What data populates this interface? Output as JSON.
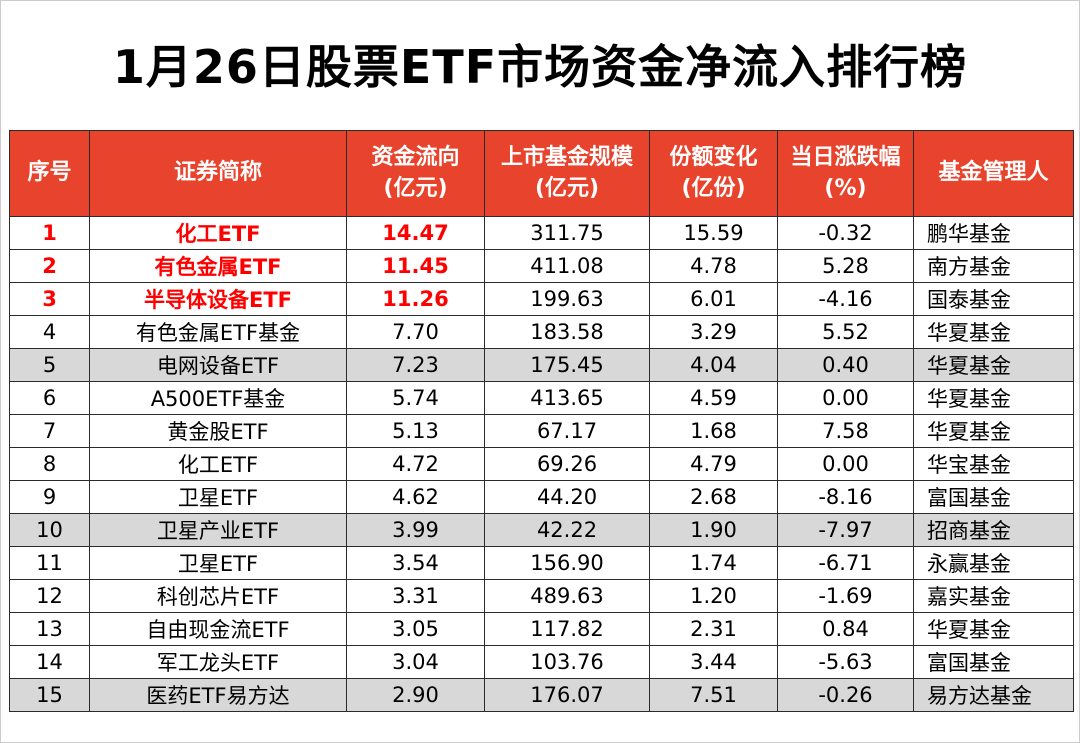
{
  "chart_data": {
    "type": "table",
    "title": "1月26日股票ETF市场资金净流入排行榜",
    "columns": [
      {
        "key": "rank",
        "label": "序号",
        "sublabel": ""
      },
      {
        "key": "name",
        "label": "证券简称",
        "sublabel": ""
      },
      {
        "key": "flow",
        "label": "资金流向",
        "sublabel": "(亿元)"
      },
      {
        "key": "scale",
        "label": "上市基金规模",
        "sublabel": "(亿元)"
      },
      {
        "key": "share",
        "label": "份额变化",
        "sublabel": "(亿份)"
      },
      {
        "key": "change",
        "label": "当日涨跌幅",
        "sublabel": "(%)"
      },
      {
        "key": "manager",
        "label": "基金管理人",
        "sublabel": ""
      }
    ],
    "rows": [
      {
        "rank": "1",
        "name": "化工ETF",
        "flow": "14.47",
        "scale": "311.75",
        "share": "15.59",
        "change": "-0.32",
        "manager": "鹏华基金"
      },
      {
        "rank": "2",
        "name": "有色金属ETF",
        "flow": "11.45",
        "scale": "411.08",
        "share": "4.78",
        "change": "5.28",
        "manager": "南方基金"
      },
      {
        "rank": "3",
        "name": "半导体设备ETF",
        "flow": "11.26",
        "scale": "199.63",
        "share": "6.01",
        "change": "-4.16",
        "manager": "国泰基金"
      },
      {
        "rank": "4",
        "name": "有色金属ETF基金",
        "flow": "7.70",
        "scale": "183.58",
        "share": "3.29",
        "change": "5.52",
        "manager": "华夏基金"
      },
      {
        "rank": "5",
        "name": "电网设备ETF",
        "flow": "7.23",
        "scale": "175.45",
        "share": "4.04",
        "change": "0.40",
        "manager": "华夏基金"
      },
      {
        "rank": "6",
        "name": "A500ETF基金",
        "flow": "5.74",
        "scale": "413.65",
        "share": "4.59",
        "change": "0.00",
        "manager": "华夏基金"
      },
      {
        "rank": "7",
        "name": "黄金股ETF",
        "flow": "5.13",
        "scale": "67.17",
        "share": "1.68",
        "change": "7.58",
        "manager": "华夏基金"
      },
      {
        "rank": "8",
        "name": "化工ETF",
        "flow": "4.72",
        "scale": "69.26",
        "share": "4.79",
        "change": "0.00",
        "manager": "华宝基金"
      },
      {
        "rank": "9",
        "name": "卫星ETF",
        "flow": "4.62",
        "scale": "44.20",
        "share": "2.68",
        "change": "-8.16",
        "manager": "富国基金"
      },
      {
        "rank": "10",
        "name": "卫星产业ETF",
        "flow": "3.99",
        "scale": "42.22",
        "share": "1.90",
        "change": "-7.97",
        "manager": "招商基金"
      },
      {
        "rank": "11",
        "name": "卫星ETF",
        "flow": "3.54",
        "scale": "156.90",
        "share": "1.74",
        "change": "-6.71",
        "manager": "永赢基金"
      },
      {
        "rank": "12",
        "name": "科创芯片ETF",
        "flow": "3.31",
        "scale": "489.63",
        "share": "1.20",
        "change": "-1.69",
        "manager": "嘉实基金"
      },
      {
        "rank": "13",
        "name": "自由现金流ETF",
        "flow": "3.05",
        "scale": "117.82",
        "share": "2.31",
        "change": "0.84",
        "manager": "华夏基金"
      },
      {
        "rank": "14",
        "name": "军工龙头ETF",
        "flow": "3.04",
        "scale": "103.76",
        "share": "3.44",
        "change": "-5.63",
        "manager": "富国基金"
      },
      {
        "rank": "15",
        "name": "医药ETF易方达",
        "flow": "2.90",
        "scale": "176.07",
        "share": "7.51",
        "change": "-0.26",
        "manager": "易方达基金"
      }
    ]
  },
  "colors": {
    "header_bg": "#E8432C",
    "highlight_text": "#FF0000",
    "stripe_bg": "#D8D8D8",
    "grid_line": "#2B2B2B"
  }
}
